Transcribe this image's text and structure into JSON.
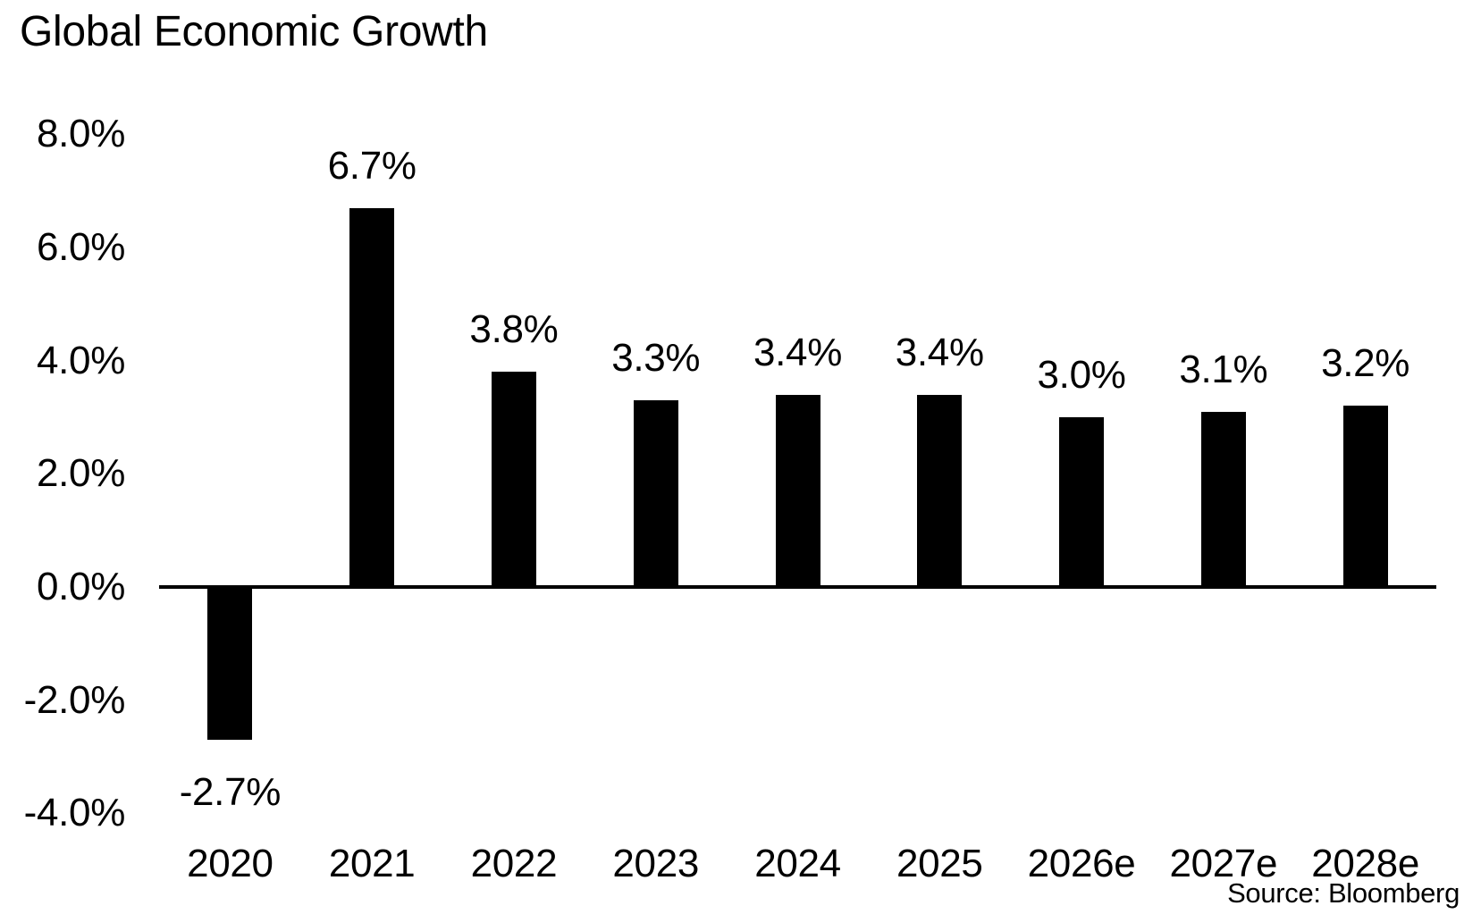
{
  "colors": {
    "bar": "#000000",
    "axis": "#000000",
    "text": "#000000",
    "background": "#ffffff"
  },
  "chart_data": {
    "type": "bar",
    "title": "Global Economic Growth",
    "categories": [
      "2020",
      "2021",
      "2022",
      "2023",
      "2024",
      "2025",
      "2026e",
      "2027e",
      "2028e"
    ],
    "values": [
      -2.7,
      6.7,
      3.8,
      3.3,
      3.4,
      3.4,
      3.0,
      3.1,
      3.2
    ],
    "bar_labels": [
      "-2.7%",
      "6.7%",
      "3.8%",
      "3.3%",
      "3.4%",
      "3.4%",
      "3.0%",
      "3.1%",
      "3.2%"
    ],
    "xlabel": "",
    "ylabel": "",
    "ylim": [
      -4.0,
      8.0
    ],
    "yticks": [
      8.0,
      6.0,
      4.0,
      2.0,
      0.0,
      -2.0,
      -4.0
    ],
    "ytick_labels": [
      "8.0%",
      "6.0%",
      "4.0%",
      "2.0%",
      "0.0%",
      "-2.0%",
      "-4.0%"
    ],
    "grid": false,
    "legend_position": "none",
    "source_note": "Source: Bloomberg"
  }
}
